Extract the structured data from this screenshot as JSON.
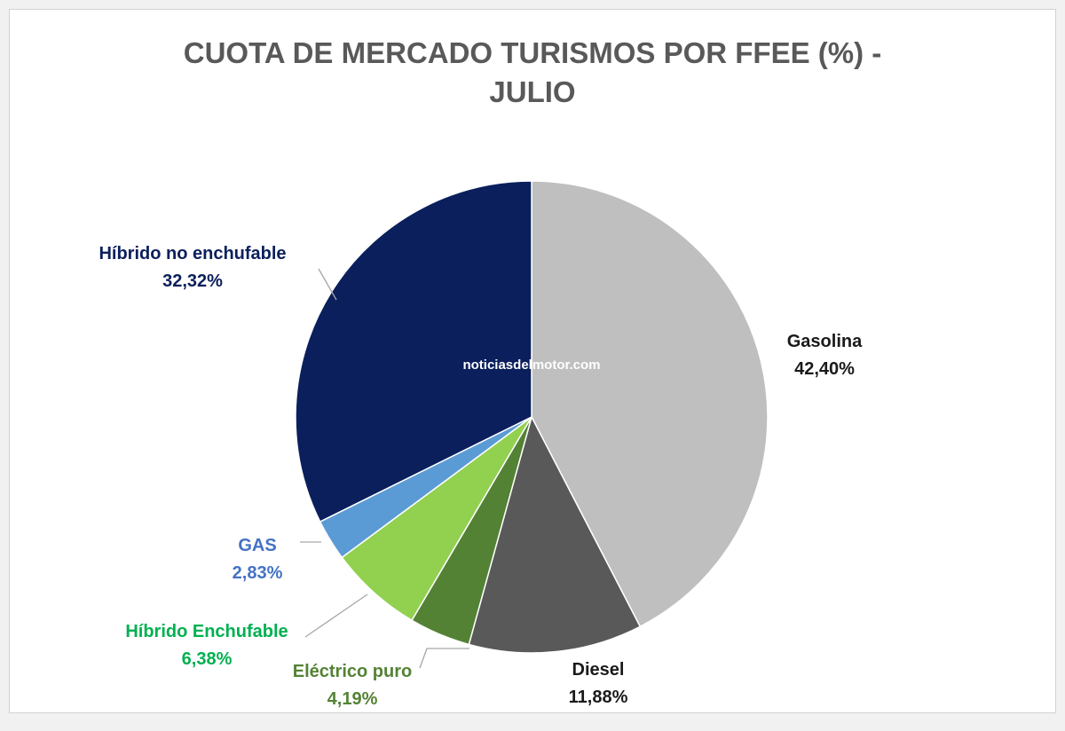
{
  "chart_data": {
    "type": "pie",
    "title_lines": [
      "CUOTA DE MERCADO TURISMOS POR FFEE (%) -",
      "JULIO"
    ],
    "watermark": "noticiasdelmotor.com",
    "slices": [
      {
        "name": "Gasolina",
        "value": 42.4,
        "value_label": "42,40%",
        "color": "#bfbfbf",
        "label_color": "#1a1a1a"
      },
      {
        "name": "Diesel",
        "value": 11.88,
        "value_label": "11,88%",
        "color": "#595959",
        "label_color": "#1a1a1a"
      },
      {
        "name": "Eléctrico puro",
        "value": 4.19,
        "value_label": "4,19%",
        "color": "#548235",
        "label_color": "#548235"
      },
      {
        "name": "Híbrido Enchufable",
        "value": 6.38,
        "value_label": "6,38%",
        "color": "#92d050",
        "label_color": "#00b050"
      },
      {
        "name": "GAS",
        "value": 2.83,
        "value_label": "2,83%",
        "color": "#5b9bd5",
        "label_color": "#4472c4"
      },
      {
        "name": "Híbrido no enchufable",
        "value": 32.32,
        "value_label": "32,32%",
        "color": "#0b1f5c",
        "label_color": "#0b1f5c"
      }
    ]
  }
}
